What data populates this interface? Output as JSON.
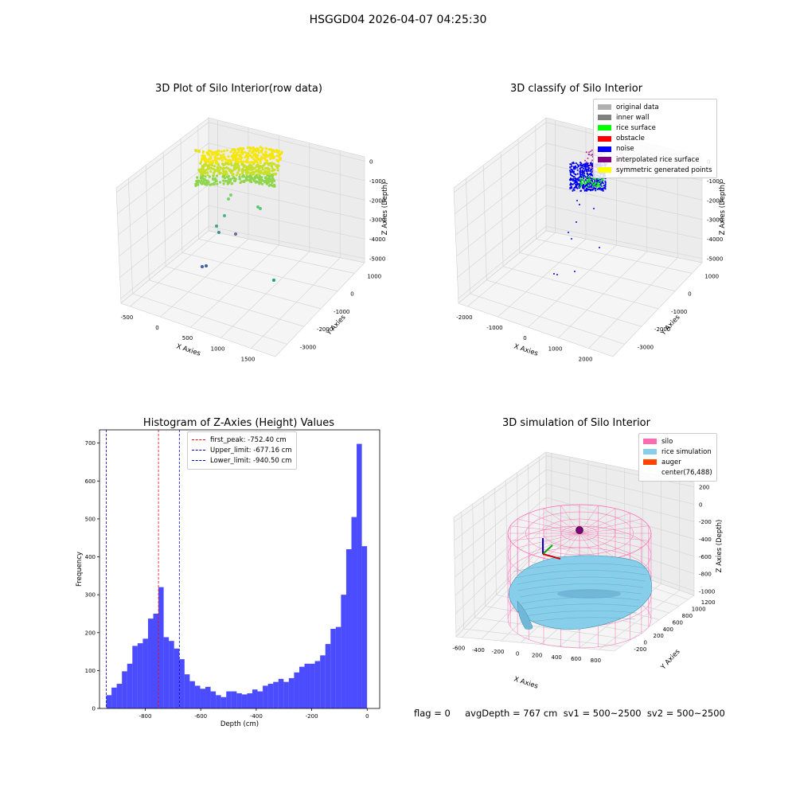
{
  "figure": {
    "suptitle": "HSGGD04 2026-04-07 04:25:30",
    "footer": "flag = 0     avgDepth = 767 cm  sv1 = 500~2500  sv2 = 500~2500"
  },
  "panel1": {
    "title": "3D Plot of Silo Interior(row data)",
    "xlabel": "X Axies",
    "ylabel": "Y Axies",
    "zlabel": "Z Axies (Depth)",
    "xticks": [
      "-500",
      "0",
      "500",
      "1000",
      "1500"
    ],
    "yticks": [
      "1000",
      "0",
      "-1000",
      "-2000",
      "-3000"
    ],
    "zticks": [
      "0",
      "-1000",
      "-2000",
      "-3000",
      "-4000",
      "-5000"
    ]
  },
  "panel2": {
    "title": "3D classify of Silo Interior",
    "xlabel": "X Axies",
    "ylabel": "Y Axies",
    "zlabel": "Z Axies (Depth)",
    "xticks": [
      "-2000",
      "-1000",
      "0",
      "1000",
      "2000"
    ],
    "yticks": [
      "1000",
      "0",
      "-1000",
      "-2000",
      "-3000"
    ],
    "zticks": [
      "0",
      "-1000",
      "-2000",
      "-3000",
      "-4000",
      "-5000"
    ],
    "legend": [
      {
        "label": "original data",
        "color": "#b0b0b0"
      },
      {
        "label": "inner wall",
        "color": "#808080"
      },
      {
        "label": "rice surface",
        "color": "#00ff00"
      },
      {
        "label": "obstacle",
        "color": "#ff0000"
      },
      {
        "label": "noise",
        "color": "#0000ff"
      },
      {
        "label": "interpolated rice surface",
        "color": "#800080"
      },
      {
        "label": "symmetric generated points",
        "color": "#ffff00"
      }
    ]
  },
  "panel4": {
    "title": "3D simulation of Silo Interior",
    "xlabel": "X Axies",
    "ylabel": "Y Axies",
    "zlabel": "Z Axies (Depth)",
    "xticks": [
      "-600",
      "-400",
      "-200",
      "0",
      "200",
      "400",
      "600",
      "800"
    ],
    "yticks": [
      "1200",
      "1000",
      "800",
      "600",
      "400",
      "200",
      "0",
      "-200"
    ],
    "zticks": [
      "200",
      "0",
      "-200",
      "-400",
      "-600",
      "-800",
      "-1000"
    ],
    "legend": [
      {
        "label": "silo",
        "color": "#ff69b4"
      },
      {
        "label": "rice simulation",
        "color": "#87ceeb"
      },
      {
        "label": "auger",
        "color": "#ff4500"
      },
      {
        "label": "center(76,488)",
        "color": ""
      }
    ]
  },
  "chart_data": [
    {
      "type": "histogram",
      "title": "Histogram of Z-Axies (Height) Values",
      "xlabel": "Depth (cm)",
      "ylabel": "Frequency",
      "bar_color": "#0000ff",
      "xlim": [
        -965,
        45
      ],
      "ylim": [
        0,
        735
      ],
      "xticks": [
        -800,
        -600,
        -400,
        -200,
        0
      ],
      "yticks": [
        0,
        100,
        200,
        300,
        400,
        500,
        600,
        700
      ],
      "bin_start": -940.5,
      "bin_width": 18.8,
      "values": [
        35,
        55,
        65,
        98,
        118,
        165,
        172,
        184,
        237,
        250,
        320,
        188,
        178,
        158,
        130,
        90,
        72,
        60,
        52,
        57,
        45,
        35,
        30,
        45,
        45,
        40,
        37,
        40,
        50,
        45,
        60,
        65,
        70,
        78,
        70,
        80,
        95,
        110,
        118,
        118,
        125,
        140,
        170,
        210,
        215,
        300,
        420,
        505,
        698,
        428
      ],
      "vlines": [
        {
          "label": "first_peak: -752.40 cm",
          "x": -752.4,
          "color": "#ff0000"
        },
        {
          "label": "Upper_limit: -677.16 cm",
          "x": -677.16,
          "color": "#0000cc"
        },
        {
          "label": "Lower_limit: -940.50 cm",
          "x": -940.5,
          "color": "#0000cc"
        }
      ]
    }
  ]
}
